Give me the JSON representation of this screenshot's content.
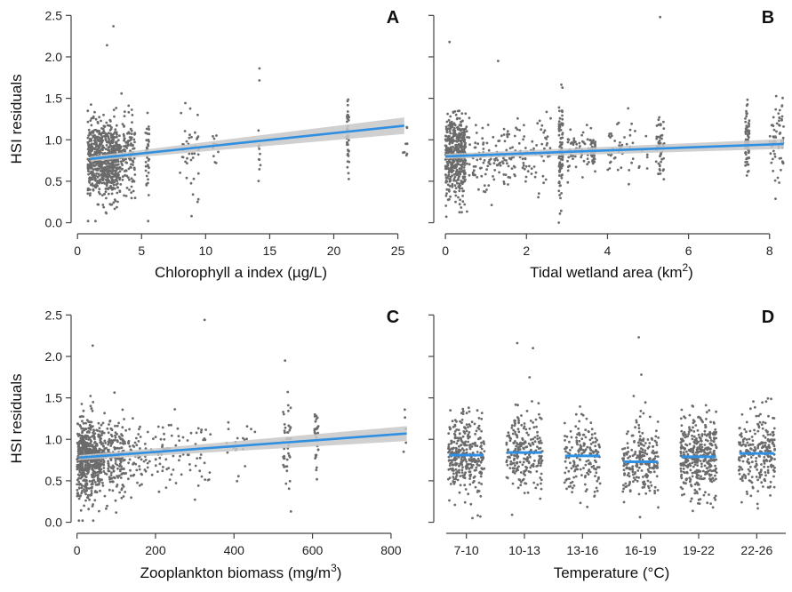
{
  "chart_data": [
    {
      "panel": "A",
      "type": "scatter",
      "xlabel": "Chlorophyll a index (µg/L)",
      "ylabel": "HSI residuals",
      "xlim": [
        -0.5,
        26
      ],
      "ylim": [
        -0.08,
        2.6
      ],
      "xticks": [
        "0",
        "5",
        "10",
        "15",
        "20",
        "25"
      ],
      "yticks": [
        "0.0",
        "0.5",
        "1.0",
        "1.5",
        "2.0",
        "2.5"
      ],
      "fit_line": {
        "x": [
          1,
          25.5
        ],
        "y": [
          0.77,
          1.17
        ]
      },
      "ci_halfwidth": [
        0.03,
        0.1
      ],
      "clusters": [
        {
          "x": [
            0.8,
            3.2
          ],
          "n": 700,
          "mean": 0.75,
          "sd": 0.22
        },
        {
          "x": [
            3.2,
            4.5
          ],
          "n": 140,
          "mean": 0.8,
          "sd": 0.24
        },
        {
          "x": [
            5.3,
            5.6
          ],
          "n": 40,
          "mean": 0.85,
          "sd": 0.3
        },
        {
          "x": [
            8.0,
            9.5
          ],
          "n": 40,
          "mean": 0.88,
          "sd": 0.3
        },
        {
          "x": [
            10.5,
            11
          ],
          "n": 10,
          "mean": 0.85,
          "sd": 0.2
        },
        {
          "x": [
            14,
            14.3
          ],
          "n": 12,
          "mean": 1.0,
          "sd": 0.3
        },
        {
          "x": [
            21,
            21.2
          ],
          "n": 40,
          "mean": 1.05,
          "sd": 0.2
        },
        {
          "x": [
            25.4,
            25.8
          ],
          "n": 8,
          "mean": 1.0,
          "sd": 0.15
        }
      ],
      "outliers": [
        [
          2.8,
          2.37
        ],
        [
          2.3,
          2.14
        ],
        [
          14.2,
          1.86
        ],
        [
          8.9,
          0.08
        ],
        [
          1.4,
          0.02
        ]
      ]
    },
    {
      "panel": "B",
      "type": "scatter",
      "xlabel": "Tidal wetland area (km",
      "xlabel_sup": "2",
      "xlabel_end": ")",
      "ylabel": "",
      "xlim": [
        -0.2,
        8.4
      ],
      "ylim": [
        -0.08,
        2.6
      ],
      "xticks": [
        "0",
        "2",
        "4",
        "6",
        "8"
      ],
      "yticks": [],
      "fit_line": {
        "x": [
          0,
          8.35
        ],
        "y": [
          0.8,
          0.95
        ]
      },
      "ci_halfwidth": [
        0.03,
        0.06
      ],
      "clusters": [
        {
          "x": [
            0,
            0.5
          ],
          "n": 450,
          "mean": 0.78,
          "sd": 0.25
        },
        {
          "x": [
            0.5,
            1.5
          ],
          "n": 100,
          "mean": 0.8,
          "sd": 0.2
        },
        {
          "x": [
            1.5,
            2.6
          ],
          "n": 90,
          "mean": 0.82,
          "sd": 0.22
        },
        {
          "x": [
            2.8,
            2.9
          ],
          "n": 90,
          "mean": 0.85,
          "sd": 0.3
        },
        {
          "x": [
            3.0,
            3.6
          ],
          "n": 60,
          "mean": 0.85,
          "sd": 0.15
        },
        {
          "x": [
            3.6,
            3.7
          ],
          "n": 40,
          "mean": 0.85,
          "sd": 0.1
        },
        {
          "x": [
            4.0,
            5.0
          ],
          "n": 50,
          "mean": 0.88,
          "sd": 0.2
        },
        {
          "x": [
            5.2,
            5.4
          ],
          "n": 50,
          "mean": 0.88,
          "sd": 0.2
        },
        {
          "x": [
            7.4,
            7.5
          ],
          "n": 80,
          "mean": 0.95,
          "sd": 0.22
        },
        {
          "x": [
            8.0,
            8.35
          ],
          "n": 70,
          "mean": 0.95,
          "sd": 0.22
        }
      ],
      "outliers": [
        [
          5.3,
          2.48
        ],
        [
          0.1,
          2.18
        ],
        [
          1.3,
          1.95
        ],
        [
          2.8,
          0.0
        ]
      ]
    },
    {
      "panel": "C",
      "type": "scatter",
      "xlabel": "Zooplankton biomass (mg/m",
      "xlabel_sup": "3",
      "xlabel_end": ")",
      "ylabel": "HSI residuals",
      "xlim": [
        -15,
        850
      ],
      "ylim": [
        -0.08,
        2.6
      ],
      "xticks": [
        "0",
        "200",
        "400",
        "600",
        "800"
      ],
      "yticks": [
        "0.0",
        "0.5",
        "1.0",
        "1.5",
        "2.0",
        "2.5"
      ],
      "fit_line": {
        "x": [
          5,
          840
        ],
        "y": [
          0.78,
          1.07
        ]
      },
      "ci_halfwidth": [
        0.03,
        0.09
      ],
      "clusters": [
        {
          "x": [
            0,
            60
          ],
          "n": 550,
          "mean": 0.77,
          "sd": 0.24
        },
        {
          "x": [
            60,
            120
          ],
          "n": 220,
          "mean": 0.78,
          "sd": 0.22
        },
        {
          "x": [
            120,
            220
          ],
          "n": 90,
          "mean": 0.8,
          "sd": 0.2
        },
        {
          "x": [
            220,
            340
          ],
          "n": 60,
          "mean": 0.85,
          "sd": 0.25
        },
        {
          "x": [
            380,
            460
          ],
          "n": 20,
          "mean": 0.9,
          "sd": 0.2
        },
        {
          "x": [
            525,
            545
          ],
          "n": 40,
          "mean": 0.95,
          "sd": 0.25
        },
        {
          "x": [
            605,
            615
          ],
          "n": 30,
          "mean": 1.0,
          "sd": 0.2
        },
        {
          "x": [
            830,
            840
          ],
          "n": 5,
          "mean": 0.9,
          "sd": 0.2
        }
      ],
      "outliers": [
        [
          325,
          2.44
        ],
        [
          40,
          2.13
        ],
        [
          530,
          1.95
        ],
        [
          545,
          0.13
        ],
        [
          5,
          0.02
        ]
      ]
    },
    {
      "panel": "D",
      "type": "scatter",
      "xlabel": "Temperature (°C)",
      "ylabel": "",
      "categories": [
        "7-10",
        "10-13",
        "13-16",
        "16-19",
        "19-22",
        "22-26"
      ],
      "xticks": [
        "7-10",
        "10-13",
        "13-16",
        "16-19",
        "19-22",
        "22-26"
      ],
      "ylim": [
        -0.08,
        2.6
      ],
      "yticks": [],
      "category_means": [
        0.81,
        0.84,
        0.8,
        0.73,
        0.79,
        0.83
      ],
      "category_counts": [
        330,
        230,
        170,
        230,
        380,
        250
      ],
      "outliers": [
        [
          1,
          2.1
        ],
        [
          1,
          2.16
        ],
        [
          3,
          2.23
        ],
        [
          3,
          1.78
        ],
        [
          0,
          0.05
        ]
      ]
    }
  ]
}
